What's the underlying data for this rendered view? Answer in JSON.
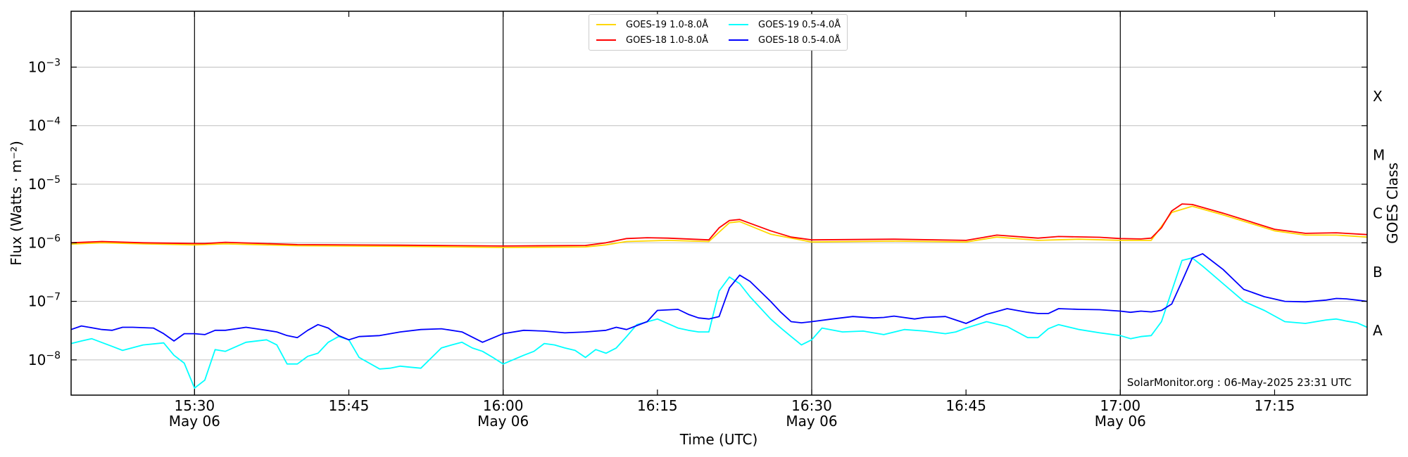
{
  "chart_data": {
    "type": "line",
    "title": "",
    "xlabel": "Time (UTC)",
    "ylabel": "Flux (Watts · m⁻²)",
    "y2label": "GOES Class",
    "yscale": "log",
    "ylim": [
      2.5e-09,
      0.009
    ],
    "xlim": [
      "15:18",
      "17:24"
    ],
    "x_ticks": [
      {
        "time": "15:30",
        "label": "15:30",
        "sublabel": "May 06"
      },
      {
        "time": "15:45",
        "label": "15:45",
        "sublabel": ""
      },
      {
        "time": "16:00",
        "label": "16:00",
        "sublabel": "May 06"
      },
      {
        "time": "16:15",
        "label": "16:15",
        "sublabel": ""
      },
      {
        "time": "16:30",
        "label": "16:30",
        "sublabel": "May 06"
      },
      {
        "time": "16:45",
        "label": "16:45",
        "sublabel": ""
      },
      {
        "time": "17:00",
        "label": "17:00",
        "sublabel": "May 06"
      },
      {
        "time": "17:15",
        "label": "17:15",
        "sublabel": ""
      }
    ],
    "vertical_lines": [
      "15:30",
      "16:00",
      "16:30",
      "17:00"
    ],
    "y_ticks": [
      {
        "value": 1e-08,
        "base": "10",
        "exp": "−8"
      },
      {
        "value": 1e-07,
        "base": "10",
        "exp": "−7"
      },
      {
        "value": 1e-06,
        "base": "10",
        "exp": "−6"
      },
      {
        "value": 1e-05,
        "base": "10",
        "exp": "−5"
      },
      {
        "value": 0.0001,
        "base": "10",
        "exp": "−4"
      },
      {
        "value": 0.001,
        "base": "10",
        "exp": "−3"
      }
    ],
    "goes_classes": [
      {
        "label": "A",
        "value": 3.16e-08
      },
      {
        "label": "B",
        "value": 3.16e-07
      },
      {
        "label": "C",
        "value": 3.16e-06
      },
      {
        "label": "M",
        "value": 3.16e-05
      },
      {
        "label": "X",
        "value": 0.000316
      }
    ],
    "grid": true,
    "legend_position": "top-center",
    "legend": [
      {
        "label": "GOES-19 1.0-8.0Å",
        "color": "#FFD700"
      },
      {
        "label": "GOES-18 1.0-8.0Å",
        "color": "#FF0000"
      },
      {
        "label": "GOES-19 0.5-4.0Å",
        "color": "#00FFFF"
      },
      {
        "label": "GOES-18 0.5-4.0Å",
        "color": "#0000FF"
      }
    ],
    "series": [
      {
        "name": "GOES-19 1.0-8.0Å",
        "color": "#FFD700",
        "x": [
          "15:18",
          "15:21",
          "15:25",
          "15:30",
          "15:33",
          "15:40",
          "15:50",
          "16:00",
          "16:08",
          "16:10",
          "16:12",
          "16:16",
          "16:20",
          "16:22",
          "16:23",
          "16:26",
          "16:30",
          "16:38",
          "16:45",
          "16:48",
          "16:52",
          "16:56",
          "17:00",
          "17:03",
          "17:05",
          "17:07",
          "17:10",
          "17:15",
          "17:18",
          "17:21",
          "17:24"
        ],
        "y": [
          9.5e-07,
          1e-06,
          9.6e-07,
          9.2e-07,
          9.6e-07,
          8.9e-07,
          8.7e-07,
          8.3e-07,
          8.5e-07,
          9.2e-07,
          1.05e-06,
          1.1e-06,
          1.05e-06,
          2.2e-06,
          2.3e-06,
          1.4e-06,
          1.03e-06,
          1.07e-06,
          1.03e-06,
          1.25e-06,
          1.1e-06,
          1.15e-06,
          1.1e-06,
          1.1e-06,
          3.3e-06,
          4.2e-06,
          3e-06,
          1.6e-06,
          1.35e-06,
          1.35e-06,
          1.25e-06
        ]
      },
      {
        "name": "GOES-18 1.0-8.0Å",
        "color": "#FF0000",
        "x": [
          "15:18",
          "15:21",
          "15:25",
          "15:30",
          "15:31",
          "15:33",
          "15:40",
          "15:50",
          "16:00",
          "16:08",
          "16:10",
          "16:12",
          "16:14",
          "16:16",
          "16:20",
          "16:21",
          "16:22",
          "16:23",
          "16:26",
          "16:28",
          "16:30",
          "16:38",
          "16:45",
          "16:48",
          "16:52",
          "16:54",
          "16:58",
          "17:00",
          "17:02",
          "17:03",
          "17:04",
          "17:05",
          "17:06",
          "17:07",
          "17:10",
          "17:15",
          "17:18",
          "17:21",
          "17:24"
        ],
        "y": [
          1e-06,
          1.05e-06,
          1e-06,
          9.7e-07,
          9.7e-07,
          1.02e-06,
          9.3e-07,
          9.1e-07,
          8.8e-07,
          9e-07,
          1e-06,
          1.18e-06,
          1.22e-06,
          1.2e-06,
          1.12e-06,
          1.8e-06,
          2.4e-06,
          2.5e-06,
          1.6e-06,
          1.25e-06,
          1.12e-06,
          1.15e-06,
          1.1e-06,
          1.35e-06,
          1.2e-06,
          1.28e-06,
          1.24e-06,
          1.18e-06,
          1.16e-06,
          1.2e-06,
          1.8e-06,
          3.5e-06,
          4.6e-06,
          4.5e-06,
          3.2e-06,
          1.7e-06,
          1.45e-06,
          1.48e-06,
          1.38e-06
        ]
      },
      {
        "name": "GOES-19 0.5-4.0Å",
        "color": "#00FFFF",
        "x": [
          "15:18",
          "15:19",
          "15:20",
          "15:22",
          "15:23",
          "15:25",
          "15:27",
          "15:28",
          "15:29",
          "15:30",
          "15:31",
          "15:32",
          "15:33",
          "15:35",
          "15:37",
          "15:38",
          "15:39",
          "15:40",
          "15:41",
          "15:42",
          "15:43",
          "15:44",
          "15:45",
          "15:46",
          "15:48",
          "15:49",
          "15:50",
          "15:51",
          "15:52",
          "15:54",
          "15:55",
          "15:56",
          "15:57",
          "15:58",
          "15:59",
          "16:00",
          "16:02",
          "16:03",
          "16:04",
          "16:05",
          "16:06",
          "16:07",
          "16:08",
          "16:09",
          "16:10",
          "16:11",
          "16:12",
          "16:13",
          "16:15",
          "16:17",
          "16:18",
          "16:19",
          "16:20",
          "16:21",
          "16:22",
          "16:23",
          "16:24",
          "16:26",
          "16:27",
          "16:28",
          "16:29",
          "16:30",
          "16:31",
          "16:33",
          "16:35",
          "16:37",
          "16:39",
          "16:41",
          "16:43",
          "16:44",
          "16:45",
          "16:47",
          "16:49",
          "16:51",
          "16:52",
          "16:53",
          "16:54",
          "16:56",
          "16:58",
          "17:00",
          "17:01",
          "17:02",
          "17:03",
          "17:04",
          "17:05",
          "17:06",
          "17:07",
          "17:08",
          "17:10",
          "17:12",
          "17:14",
          "17:16",
          "17:18",
          "17:20",
          "17:21",
          "17:22",
          "17:23",
          "17:24"
        ],
        "y": [
          1.9e-08,
          2.1e-08,
          2.3e-08,
          1.7e-08,
          1.45e-08,
          1.8e-08,
          1.95e-08,
          1.2e-08,
          8.8e-09,
          3.3e-09,
          4.5e-09,
          1.5e-08,
          1.4e-08,
          2e-08,
          2.2e-08,
          1.8e-08,
          8.5e-09,
          8.5e-09,
          1.15e-08,
          1.3e-08,
          2e-08,
          2.5e-08,
          2.2e-08,
          1.1e-08,
          7e-09,
          7.2e-09,
          7.8e-09,
          7.5e-09,
          7.2e-09,
          1.6e-08,
          1.8e-08,
          2e-08,
          1.6e-08,
          1.4e-08,
          1.1e-08,
          8.5e-09,
          1.2e-08,
          1.4e-08,
          1.9e-08,
          1.8e-08,
          1.6e-08,
          1.45e-08,
          1.1e-08,
          1.5e-08,
          1.3e-08,
          1.6e-08,
          2.5e-08,
          4e-08,
          5e-08,
          3.5e-08,
          3.2e-08,
          3e-08,
          3e-08,
          1.5e-07,
          2.6e-07,
          2e-07,
          1.2e-07,
          5e-08,
          3.5e-08,
          2.5e-08,
          1.8e-08,
          2.2e-08,
          3.5e-08,
          3e-08,
          3.1e-08,
          2.7e-08,
          3.3e-08,
          3.1e-08,
          2.8e-08,
          3e-08,
          3.5e-08,
          4.5e-08,
          3.7e-08,
          2.4e-08,
          2.4e-08,
          3.4e-08,
          4e-08,
          3.3e-08,
          2.9e-08,
          2.6e-08,
          2.3e-08,
          2.5e-08,
          2.6e-08,
          4.5e-08,
          1.5e-07,
          5e-07,
          5.5e-07,
          4e-07,
          2e-07,
          1e-07,
          7e-08,
          4.5e-08,
          4.2e-08,
          4.8e-08,
          5e-08,
          4.6e-08,
          4.3e-08,
          3.6e-08
        ]
      },
      {
        "name": "GOES-18 0.5-4.0Å",
        "color": "#0000FF",
        "x": [
          "15:18",
          "15:19",
          "15:21",
          "15:22",
          "15:23",
          "15:24",
          "15:26",
          "15:27",
          "15:28",
          "15:29",
          "15:30",
          "15:31",
          "15:32",
          "15:33",
          "15:35",
          "15:36",
          "15:37",
          "15:38",
          "15:39",
          "15:40",
          "15:41",
          "15:42",
          "15:43",
          "15:44",
          "15:45",
          "15:46",
          "15:48",
          "15:50",
          "15:52",
          "15:54",
          "15:56",
          "15:58",
          "16:00",
          "16:02",
          "16:04",
          "16:06",
          "16:08",
          "16:10",
          "16:11",
          "16:12",
          "16:14",
          "16:15",
          "16:17",
          "16:18",
          "16:19",
          "16:20",
          "16:21",
          "16:22",
          "16:23",
          "16:24",
          "16:26",
          "16:27",
          "16:28",
          "16:29",
          "16:30",
          "16:32",
          "16:34",
          "16:36",
          "16:37",
          "16:38",
          "16:40",
          "16:41",
          "16:43",
          "16:44",
          "16:45",
          "16:47",
          "16:49",
          "16:51",
          "16:52",
          "16:53",
          "16:54",
          "16:56",
          "16:58",
          "17:00",
          "17:01",
          "17:02",
          "17:03",
          "17:04",
          "17:05",
          "17:06",
          "17:07",
          "17:08",
          "17:10",
          "17:12",
          "17:14",
          "17:16",
          "17:18",
          "17:20",
          "17:21",
          "17:22",
          "17:23",
          "17:24"
        ],
        "y": [
          3.3e-08,
          3.8e-08,
          3.3e-08,
          3.2e-08,
          3.6e-08,
          3.6e-08,
          3.5e-08,
          2.8e-08,
          2.1e-08,
          2.8e-08,
          2.8e-08,
          2.7e-08,
          3.2e-08,
          3.2e-08,
          3.6e-08,
          3.4e-08,
          3.2e-08,
          3e-08,
          2.6e-08,
          2.4e-08,
          3.2e-08,
          4e-08,
          3.5e-08,
          2.6e-08,
          2.2e-08,
          2.5e-08,
          2.6e-08,
          3e-08,
          3.3e-08,
          3.4e-08,
          3e-08,
          2e-08,
          2.8e-08,
          3.2e-08,
          3.1e-08,
          2.9e-08,
          3e-08,
          3.2e-08,
          3.6e-08,
          3.3e-08,
          4.5e-08,
          7e-08,
          7.3e-08,
          6e-08,
          5.2e-08,
          5e-08,
          5.5e-08,
          1.7e-07,
          2.8e-07,
          2.2e-07,
          1e-07,
          6.5e-08,
          4.5e-08,
          4.3e-08,
          4.5e-08,
          5e-08,
          5.5e-08,
          5.2e-08,
          5.3e-08,
          5.6e-08,
          5e-08,
          5.3e-08,
          5.5e-08,
          4.8e-08,
          4.2e-08,
          6e-08,
          7.5e-08,
          6.5e-08,
          6.2e-08,
          6.2e-08,
          7.5e-08,
          7.3e-08,
          7.2e-08,
          6.8e-08,
          6.5e-08,
          6.8e-08,
          6.6e-08,
          7e-08,
          9e-08,
          2.2e-07,
          5.5e-07,
          6.5e-07,
          3.5e-07,
          1.6e-07,
          1.2e-07,
          1e-07,
          9.8e-08,
          1.05e-07,
          1.12e-07,
          1.1e-07,
          1.05e-07,
          1e-07
        ]
      }
    ]
  },
  "credit": "SolarMonitor.org : 06-May-2025 23:31 UTC"
}
